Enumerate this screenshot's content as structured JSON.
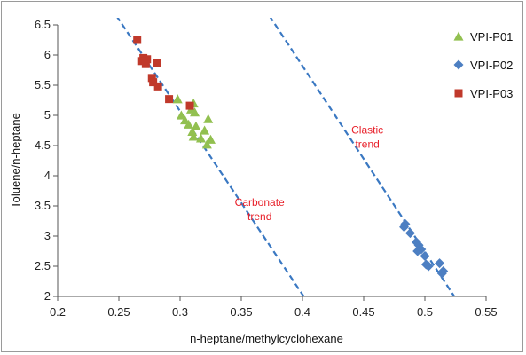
{
  "chart_data": {
    "type": "scatter",
    "title": "",
    "xlabel": "n-heptane/methylcyclohexane",
    "ylabel": "Toluene/n-heptane",
    "xlim": [
      0.2,
      0.55
    ],
    "ylim": [
      2,
      6.5
    ],
    "x_ticks": [
      "0.2",
      "0.25",
      "0.3",
      "0.35",
      "0.4",
      "0.45",
      "0.5",
      "0.55"
    ],
    "y_ticks": [
      "2",
      "2.5",
      "3",
      "3.5",
      "4",
      "4.5",
      "5",
      "5.5",
      "6",
      "6.5"
    ],
    "grid": false,
    "legend_position": "top-right",
    "series": [
      {
        "name": "VPI-P01",
        "marker": "triangle",
        "color": "#92c050",
        "points": [
          [
            0.298,
            5.27
          ],
          [
            0.311,
            5.2
          ],
          [
            0.309,
            5.1
          ],
          [
            0.312,
            5.05
          ],
          [
            0.301,
            5.0
          ],
          [
            0.323,
            4.94
          ],
          [
            0.304,
            4.92
          ],
          [
            0.307,
            4.85
          ],
          [
            0.313,
            4.82
          ],
          [
            0.31,
            4.73
          ],
          [
            0.32,
            4.75
          ],
          [
            0.311,
            4.65
          ],
          [
            0.317,
            4.62
          ],
          [
            0.325,
            4.6
          ],
          [
            0.322,
            4.52
          ]
        ]
      },
      {
        "name": "VPI-P02",
        "marker": "diamond",
        "color": "#4d7fc2",
        "points": [
          [
            0.484,
            3.2
          ],
          [
            0.483,
            3.15
          ],
          [
            0.488,
            3.05
          ],
          [
            0.493,
            2.9
          ],
          [
            0.495,
            2.85
          ],
          [
            0.497,
            2.78
          ],
          [
            0.494,
            2.75
          ],
          [
            0.5,
            2.67
          ],
          [
            0.512,
            2.55
          ],
          [
            0.501,
            2.53
          ],
          [
            0.503,
            2.5
          ],
          [
            0.515,
            2.42
          ],
          [
            0.514,
            2.38
          ]
        ]
      },
      {
        "name": "VPI-P03",
        "marker": "square",
        "color": "#c0392b",
        "points": [
          [
            0.265,
            6.25
          ],
          [
            0.27,
            5.95
          ],
          [
            0.273,
            5.93
          ],
          [
            0.269,
            5.9
          ],
          [
            0.281,
            5.87
          ],
          [
            0.272,
            5.85
          ],
          [
            0.277,
            5.62
          ],
          [
            0.278,
            5.55
          ],
          [
            0.282,
            5.48
          ],
          [
            0.291,
            5.27
          ],
          [
            0.308,
            5.16
          ]
        ]
      }
    ],
    "trend_lines": [
      {
        "label": "Carbonate trend",
        "from": [
          0.248,
          6.65
        ],
        "to": [
          0.401,
          2.0
        ]
      },
      {
        "label": "Clastic trend",
        "from": [
          0.373,
          6.65
        ],
        "to": [
          0.524,
          2.0
        ]
      }
    ],
    "annotations": [
      {
        "lines": [
          "Carbonate",
          "trend"
        ],
        "x": 0.365,
        "y": 3.5,
        "color": "#e8202a"
      },
      {
        "lines": [
          "Clastic",
          "trend"
        ],
        "x": 0.453,
        "y": 4.7,
        "color": "#e8202a"
      }
    ]
  }
}
